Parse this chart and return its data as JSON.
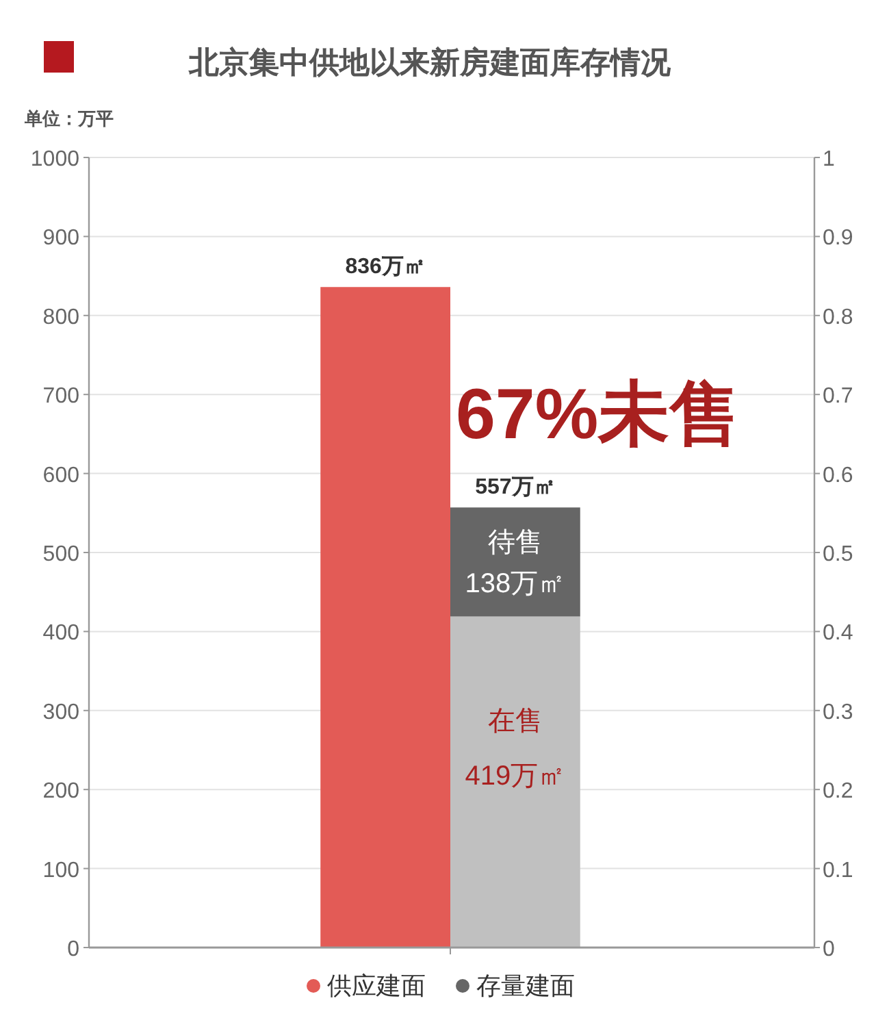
{
  "chart_data": {
    "type": "bar",
    "title": "北京集中供地以来新房建面库存情况",
    "ylabel": "单位：万平",
    "categories": [
      null,
      null
    ],
    "stacked": true,
    "series": [
      {
        "name": "供应建面",
        "color": "#e35b56",
        "values": [
          836,
          null
        ],
        "value_labels": [
          "836万㎡",
          null
        ]
      },
      {
        "color": "#c0c0c0",
        "values": [
          null,
          419
        ],
        "value_labels": [
          null,
          "在售\n419万㎡"
        ]
      },
      {
        "name": "存量建面",
        "color": "#666666",
        "values": [
          null,
          138
        ],
        "value_labels": [
          null,
          "待售\n138万㎡"
        ]
      }
    ],
    "totals": [
      null,
      "557万㎡"
    ],
    "annotations": [
      "67%未售"
    ],
    "ylim": [
      0,
      1000
    ],
    "yticks": [
      0,
      100,
      200,
      300,
      400,
      500,
      600,
      700,
      800,
      900,
      1000
    ],
    "y2lim": [
      0,
      1
    ],
    "y2ticks": [
      0,
      0.1,
      0.2,
      0.3,
      0.4,
      0.5,
      0.6,
      0.7,
      0.8,
      0.9,
      1
    ],
    "grid": "y",
    "legend": "bottom"
  }
}
